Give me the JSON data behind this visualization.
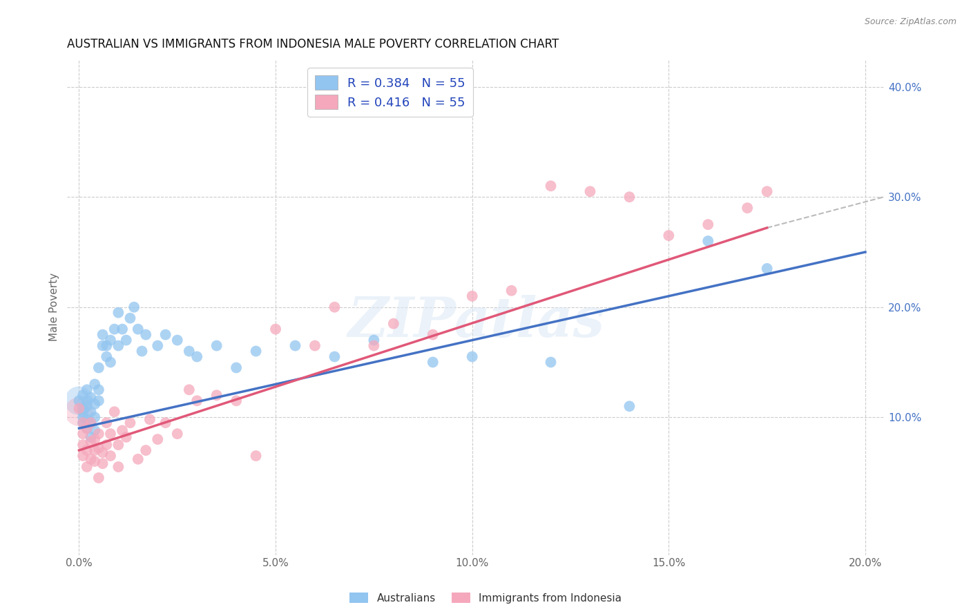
{
  "title": "AUSTRALIAN VS IMMIGRANTS FROM INDONESIA MALE POVERTY CORRELATION CHART",
  "source": "Source: ZipAtlas.com",
  "ylabel": "Male Poverty",
  "background_color": "#ffffff",
  "australians_color": "#92C5F0",
  "indonesia_color": "#F5A8BC",
  "regression_blue": "#4472C4",
  "regression_pink": "#E05878",
  "regression_dashed_color": "#bbbbbb",
  "legend_R_blue": "0.384",
  "legend_N_blue": "55",
  "legend_R_pink": "0.416",
  "legend_N_pink": "55",
  "watermark": "ZIPatlas",
  "title_fontsize": 12,
  "label_fontsize": 11,
  "legend_fontsize": 13,
  "grid_color": "#cccccc",
  "australians_x": [
    0.0,
    0.001,
    0.001,
    0.001,
    0.001,
    0.001,
    0.002,
    0.002,
    0.002,
    0.002,
    0.002,
    0.003,
    0.003,
    0.003,
    0.003,
    0.004,
    0.004,
    0.004,
    0.004,
    0.005,
    0.005,
    0.005,
    0.006,
    0.006,
    0.007,
    0.007,
    0.008,
    0.008,
    0.009,
    0.01,
    0.01,
    0.011,
    0.012,
    0.013,
    0.014,
    0.015,
    0.016,
    0.017,
    0.02,
    0.022,
    0.025,
    0.028,
    0.03,
    0.035,
    0.04,
    0.045,
    0.055,
    0.065,
    0.075,
    0.09,
    0.1,
    0.12,
    0.14,
    0.16,
    0.175
  ],
  "australians_y": [
    0.115,
    0.12,
    0.105,
    0.095,
    0.108,
    0.1,
    0.09,
    0.11,
    0.098,
    0.115,
    0.125,
    0.082,
    0.095,
    0.105,
    0.118,
    0.1,
    0.112,
    0.13,
    0.088,
    0.115,
    0.125,
    0.145,
    0.165,
    0.175,
    0.155,
    0.165,
    0.15,
    0.17,
    0.18,
    0.195,
    0.165,
    0.18,
    0.17,
    0.19,
    0.2,
    0.18,
    0.16,
    0.175,
    0.165,
    0.175,
    0.17,
    0.16,
    0.155,
    0.165,
    0.145,
    0.16,
    0.165,
    0.155,
    0.17,
    0.15,
    0.155,
    0.15,
    0.11,
    0.26,
    0.235
  ],
  "indonesia_x": [
    0.0,
    0.001,
    0.001,
    0.001,
    0.001,
    0.002,
    0.002,
    0.002,
    0.003,
    0.003,
    0.003,
    0.004,
    0.004,
    0.004,
    0.005,
    0.005,
    0.005,
    0.006,
    0.006,
    0.007,
    0.007,
    0.008,
    0.008,
    0.009,
    0.01,
    0.01,
    0.011,
    0.012,
    0.013,
    0.015,
    0.017,
    0.018,
    0.02,
    0.022,
    0.025,
    0.028,
    0.03,
    0.035,
    0.04,
    0.045,
    0.05,
    0.06,
    0.065,
    0.075,
    0.08,
    0.09,
    0.1,
    0.11,
    0.12,
    0.13,
    0.14,
    0.15,
    0.16,
    0.17,
    0.175
  ],
  "indonesia_y": [
    0.108,
    0.095,
    0.085,
    0.075,
    0.065,
    0.055,
    0.07,
    0.09,
    0.062,
    0.078,
    0.095,
    0.07,
    0.08,
    0.06,
    0.045,
    0.072,
    0.085,
    0.058,
    0.068,
    0.095,
    0.075,
    0.085,
    0.065,
    0.105,
    0.055,
    0.075,
    0.088,
    0.082,
    0.095,
    0.062,
    0.07,
    0.098,
    0.08,
    0.095,
    0.085,
    0.125,
    0.115,
    0.12,
    0.115,
    0.065,
    0.18,
    0.165,
    0.2,
    0.165,
    0.185,
    0.175,
    0.21,
    0.215,
    0.31,
    0.305,
    0.3,
    0.265,
    0.275,
    0.29,
    0.305
  ],
  "xlim": [
    -0.003,
    0.205
  ],
  "ylim": [
    -0.025,
    0.425
  ],
  "xtick_vals": [
    0.0,
    0.05,
    0.1,
    0.15,
    0.2
  ],
  "xtick_labels": [
    "0.0%",
    "5.0%",
    "10.0%",
    "15.0%",
    "20.0%"
  ],
  "ytick_vals": [
    0.1,
    0.2,
    0.3,
    0.4
  ],
  "ytick_labels": [
    "10.0%",
    "20.0%",
    "30.0%",
    "40.0%"
  ]
}
